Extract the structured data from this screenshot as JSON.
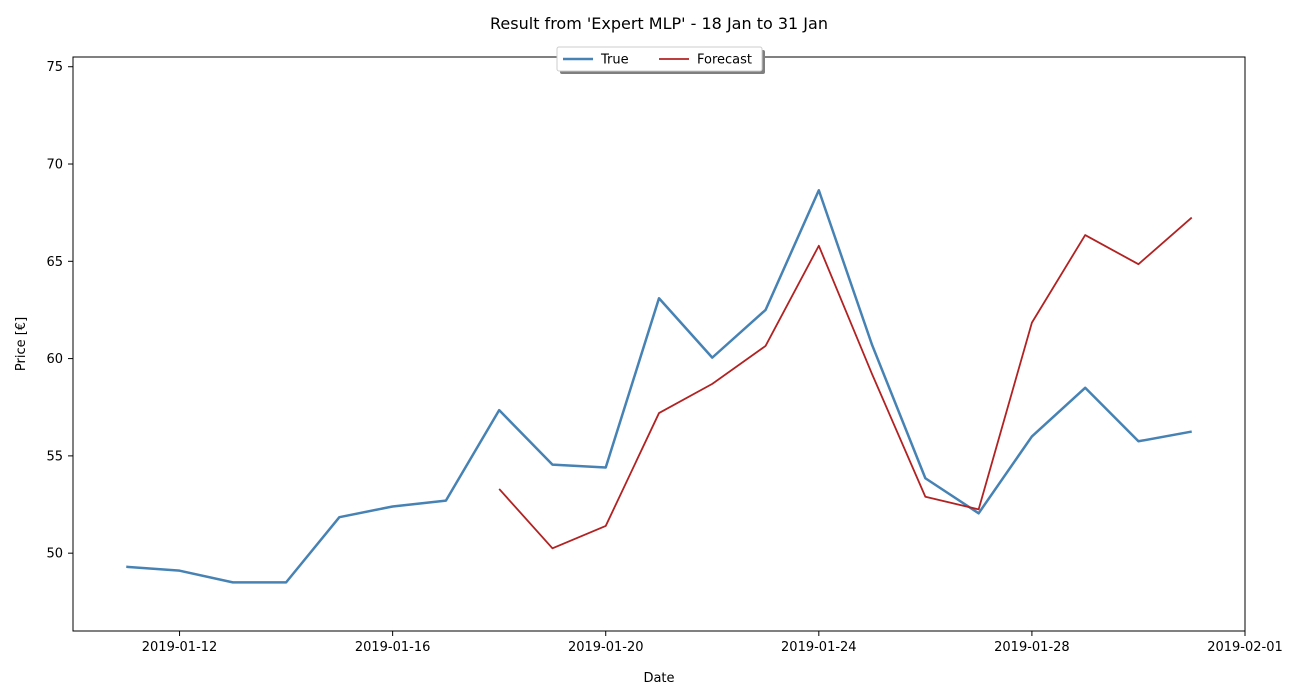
{
  "chart_data": {
    "type": "line",
    "title": "Result from 'Expert MLP' - 18 Jan to 31 Jan",
    "xlabel": "Date",
    "ylabel": "Price [€]",
    "xlim": [
      "2019-01-10",
      "2019-02-01"
    ],
    "ylim": [
      46,
      75.5
    ],
    "x_ticks": [
      "2019-01-12",
      "2019-01-16",
      "2019-01-20",
      "2019-01-24",
      "2019-01-28",
      "2019-02-01"
    ],
    "y_ticks": [
      50,
      55,
      60,
      65,
      70,
      75
    ],
    "grid": false,
    "legend": {
      "placement": "top-center",
      "columns": 2
    },
    "series": [
      {
        "name": "True",
        "color": "#4682b4",
        "points": [
          {
            "x": "2019-01-11",
            "y": 49.3
          },
          {
            "x": "2019-01-12",
            "y": 49.1
          },
          {
            "x": "2019-01-13",
            "y": 48.5
          },
          {
            "x": "2019-01-14",
            "y": 48.5
          },
          {
            "x": "2019-01-15",
            "y": 51.85
          },
          {
            "x": "2019-01-16",
            "y": 52.4
          },
          {
            "x": "2019-01-17",
            "y": 52.7
          },
          {
            "x": "2019-01-18",
            "y": 57.35
          },
          {
            "x": "2019-01-19",
            "y": 54.55
          },
          {
            "x": "2019-01-20",
            "y": 54.4
          },
          {
            "x": "2019-01-21",
            "y": 63.1
          },
          {
            "x": "2019-01-22",
            "y": 60.05
          },
          {
            "x": "2019-01-23",
            "y": 62.5
          },
          {
            "x": "2019-01-24",
            "y": 68.65
          },
          {
            "x": "2019-01-25",
            "y": 60.7
          },
          {
            "x": "2019-01-26",
            "y": 53.85
          },
          {
            "x": "2019-01-27",
            "y": 52.05
          },
          {
            "x": "2019-01-28",
            "y": 56.0
          },
          {
            "x": "2019-01-29",
            "y": 58.5
          },
          {
            "x": "2019-01-30",
            "y": 55.75
          },
          {
            "x": "2019-01-31",
            "y": 56.25
          }
        ]
      },
      {
        "name": "Forecast",
        "color": "#b22222",
        "points": [
          {
            "x": "2019-01-18",
            "y": 53.3
          },
          {
            "x": "2019-01-19",
            "y": 50.25
          },
          {
            "x": "2019-01-20",
            "y": 51.4
          },
          {
            "x": "2019-01-21",
            "y": 57.2
          },
          {
            "x": "2019-01-22",
            "y": 58.7
          },
          {
            "x": "2019-01-23",
            "y": 60.65
          },
          {
            "x": "2019-01-24",
            "y": 65.8
          },
          {
            "x": "2019-01-25",
            "y": 59.2
          },
          {
            "x": "2019-01-26",
            "y": 52.9
          },
          {
            "x": "2019-01-27",
            "y": 52.25
          },
          {
            "x": "2019-01-28",
            "y": 61.85
          },
          {
            "x": "2019-01-29",
            "y": 66.35
          },
          {
            "x": "2019-01-30",
            "y": 64.85
          },
          {
            "x": "2019-01-31",
            "y": 67.25
          }
        ]
      }
    ]
  }
}
